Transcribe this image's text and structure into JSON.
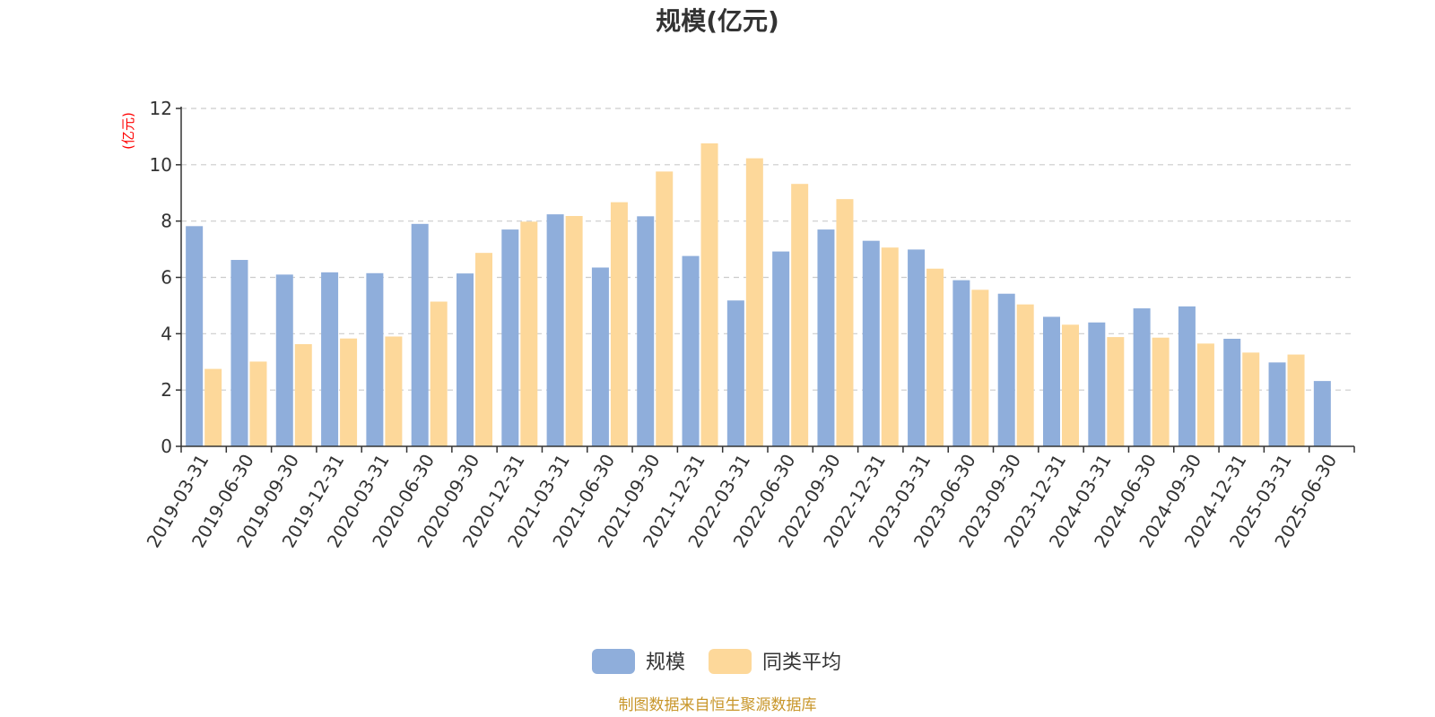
{
  "chart_data": {
    "type": "bar",
    "title": "规模(亿元)",
    "ylabel": "(亿元)",
    "xlabel": "",
    "ylim": [
      0,
      12
    ],
    "yticks": [
      0,
      2,
      4,
      6,
      8,
      10,
      12
    ],
    "grid": true,
    "legend_position": "bottom",
    "categories": [
      "2019-03-31",
      "2019-06-30",
      "2019-09-30",
      "2019-12-31",
      "2020-03-31",
      "2020-06-30",
      "2020-09-30",
      "2020-12-31",
      "2021-03-31",
      "2021-06-30",
      "2021-09-30",
      "2021-12-31",
      "2022-03-31",
      "2022-06-30",
      "2022-09-30",
      "2022-12-31",
      "2023-03-31",
      "2023-06-30",
      "2023-09-30",
      "2023-12-31",
      "2024-03-31",
      "2024-06-30",
      "2024-09-30",
      "2024-12-31",
      "2025-03-31",
      "2025-06-30"
    ],
    "series": [
      {
        "name": "规模",
        "color": "#8faedb",
        "values": [
          7.82,
          6.62,
          6.1,
          6.18,
          6.15,
          7.9,
          6.14,
          7.7,
          8.24,
          6.35,
          8.17,
          6.76,
          5.18,
          6.92,
          7.7,
          7.3,
          6.99,
          5.9,
          5.42,
          4.6,
          4.4,
          4.9,
          4.97,
          3.82,
          2.98,
          2.32
        ]
      },
      {
        "name": "同类平均",
        "color": "#fdd89a",
        "values": [
          2.75,
          3.01,
          3.63,
          3.83,
          3.9,
          5.14,
          6.87,
          7.98,
          8.18,
          8.67,
          9.76,
          10.76,
          10.23,
          9.32,
          8.78,
          7.06,
          6.31,
          5.56,
          5.04,
          4.32,
          3.88,
          3.86,
          3.65,
          3.33,
          3.26,
          null
        ]
      }
    ],
    "source": "制图数据来自恒生聚源数据库"
  }
}
